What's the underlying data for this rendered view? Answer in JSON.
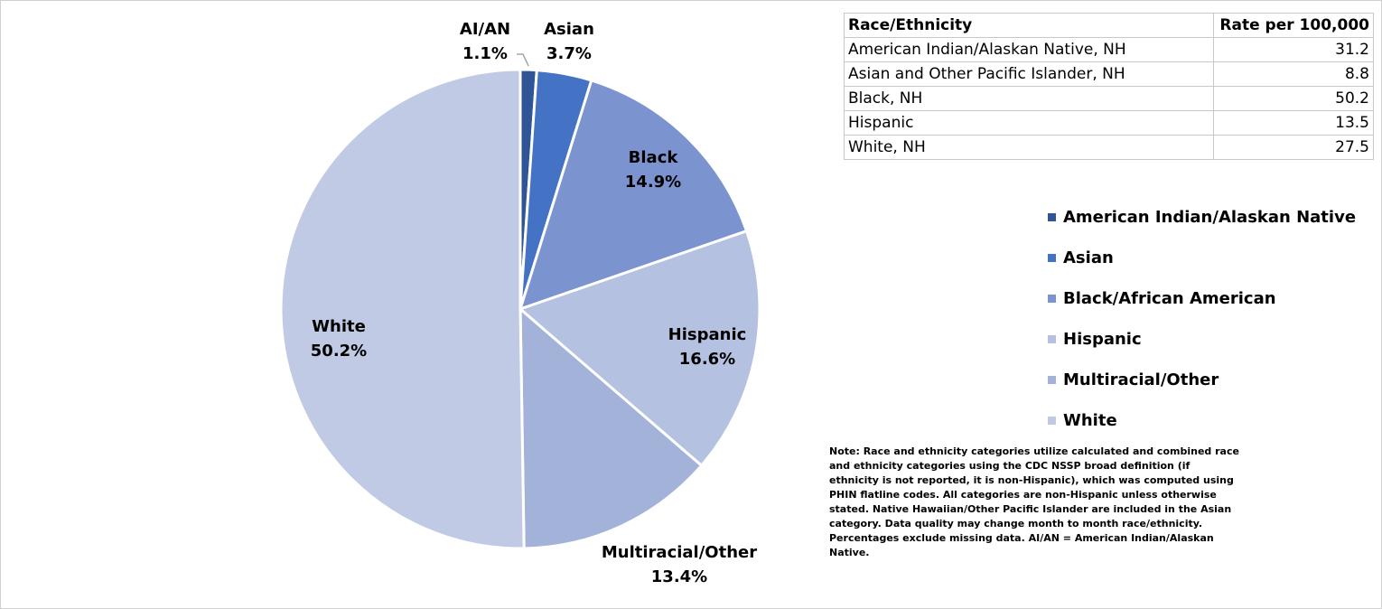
{
  "chart_data": {
    "type": "pie",
    "categories": [
      "American Indian/Alaskan Native",
      "Asian",
      "Black/African American",
      "Hispanic",
      "Multiracial/Other",
      "White"
    ],
    "labels": [
      "AI/AN",
      "Asian",
      "Black",
      "Hispanic",
      "Multiracial/Other",
      "White"
    ],
    "values": [
      1.1,
      3.7,
      14.9,
      16.6,
      13.4,
      50.2
    ],
    "value_labels": [
      "1.1%",
      "3.7%",
      "14.9%",
      "16.6%",
      "13.4%",
      "50.2%"
    ],
    "colors": [
      "#2f5597",
      "#4472c4",
      "#7b93cf",
      "#b4c1e0",
      "#a3b2d9",
      "#c0cae4"
    ],
    "legend": "right"
  },
  "table": {
    "header": [
      "Race/Ethnicity",
      "Rate per 100,000"
    ],
    "rows": [
      [
        "American Indian/Alaskan Native, NH",
        31.2
      ],
      [
        "Asian and Other Pacific Islander, NH",
        8.8
      ],
      [
        "Black, NH",
        50.2
      ],
      [
        "Hispanic",
        13.5
      ],
      [
        "White, NH",
        27.5
      ]
    ]
  },
  "note": "Note: Race and ethnicity categories utilize calculated and combined race and ethnicity categories using the CDC NSSP broad definition (if ethnicity is not reported, it is non-Hispanic), which was computed using PHIN flatline codes. All categories are non-Hispanic unless otherwise stated. Native Hawaiian/Other Pacific Islander are included in the Asian category. Data quality may change month to month race/ethnicity. Percentages exclude missing data. AI/AN = American Indian/Alaskan Native."
}
